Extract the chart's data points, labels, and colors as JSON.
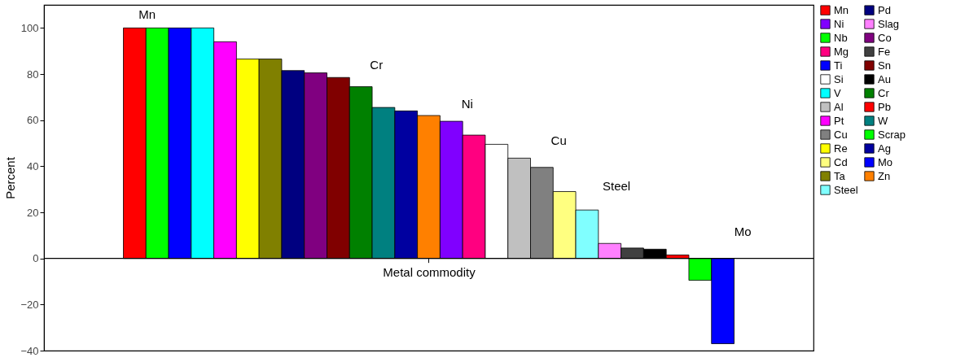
{
  "chart_data": {
    "type": "bar",
    "xlabel": "Metal commodity",
    "ylabel": "Percent",
    "categories": [
      null
    ],
    "series": [
      {
        "name": "Mn",
        "color": "#ff0000",
        "values": [
          100
        ]
      },
      {
        "name": "Nb",
        "color": "#00ff00",
        "values": [
          100
        ]
      },
      {
        "name": "Ti",
        "color": "#0000ff",
        "values": [
          100
        ]
      },
      {
        "name": "V",
        "color": "#00ffff",
        "values": [
          100
        ]
      },
      {
        "name": "Pt",
        "color": "#ff00ff",
        "values": [
          94
        ]
      },
      {
        "name": "Re",
        "color": "#ffff00",
        "values": [
          86.5
        ]
      },
      {
        "name": "Ta",
        "color": "#808000",
        "values": [
          86.5
        ]
      },
      {
        "name": "Pd",
        "color": "#000080",
        "values": [
          81.5
        ]
      },
      {
        "name": "Co",
        "color": "#800080",
        "values": [
          80.5
        ]
      },
      {
        "name": "Sn",
        "color": "#800000",
        "values": [
          78.5
        ]
      },
      {
        "name": "Cr",
        "color": "#008000",
        "values": [
          74.5
        ]
      },
      {
        "name": "W",
        "color": "#008080",
        "values": [
          65.5
        ]
      },
      {
        "name": "Ag",
        "color": "#0000a0",
        "values": [
          64
        ]
      },
      {
        "name": "Zn",
        "color": "#ff8000",
        "values": [
          62
        ]
      },
      {
        "name": "Ni",
        "color": "#8000ff",
        "values": [
          59.5
        ]
      },
      {
        "name": "Mg",
        "color": "#ff0080",
        "values": [
          53.5
        ]
      },
      {
        "name": "Si",
        "color": "#ffffff",
        "values": [
          49.5
        ]
      },
      {
        "name": "Al",
        "color": "#c0c0c0",
        "values": [
          43.5
        ]
      },
      {
        "name": "Cu",
        "color": "#808080",
        "values": [
          39.5
        ]
      },
      {
        "name": "Cd",
        "color": "#ffff80",
        "values": [
          29
        ]
      },
      {
        "name": "Steel",
        "color": "#80ffff",
        "values": [
          21
        ]
      },
      {
        "name": "Slag",
        "color": "#ff80ff",
        "values": [
          6.5
        ]
      },
      {
        "name": "Fe",
        "color": "#404040",
        "values": [
          4.5
        ]
      },
      {
        "name": "Au",
        "color": "#000000",
        "values": [
          4
        ]
      },
      {
        "name": "Pb",
        "color": "#ff0000",
        "values": [
          1.5
        ]
      },
      {
        "name": "Scrap",
        "color": "#00ff00",
        "values": [
          -9.5
        ]
      },
      {
        "name": "Mo",
        "color": "#0000ff",
        "values": [
          -37
        ]
      }
    ],
    "ylim": [
      -40,
      110
    ],
    "yticks": [
      -40,
      -20,
      0,
      20,
      40,
      60,
      80,
      100
    ],
    "annotations": [
      "Mn",
      "Cr",
      "Ni",
      "Cu",
      "Steel",
      "Mo"
    ],
    "ref_lines": [
      {
        "axis": "y",
        "value": 0,
        "color": "#000000"
      }
    ],
    "legend": "right",
    "grid": false,
    "tick_labels": "y"
  }
}
